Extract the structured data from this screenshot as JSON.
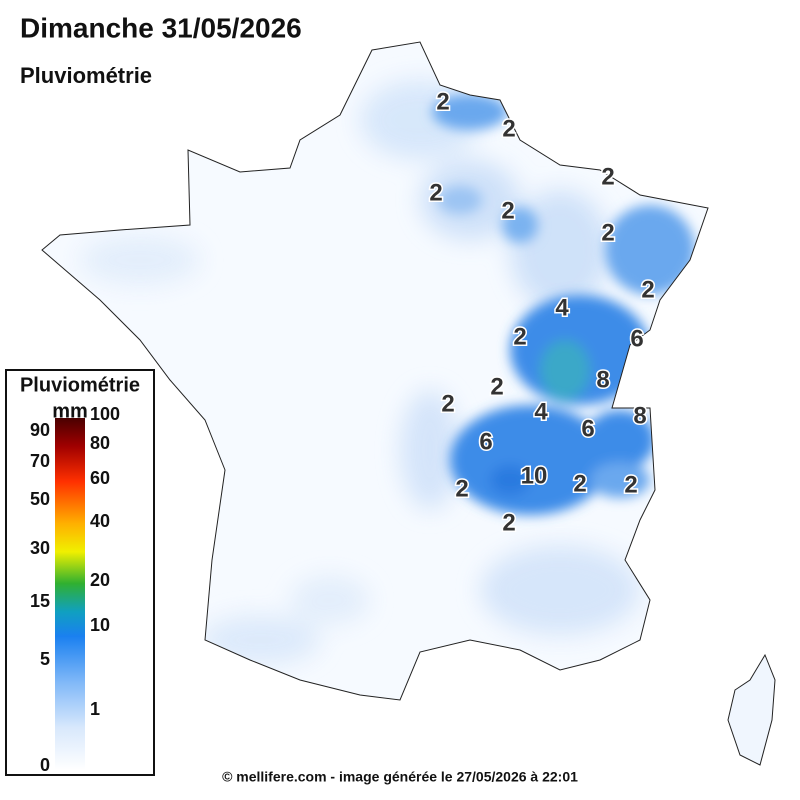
{
  "header": {
    "title": "Dimanche 31/05/2026",
    "subtitle": "Pluviométrie"
  },
  "legend": {
    "title": "Pluviométrie",
    "unit": "mm",
    "left_labels": [
      90,
      70,
      50,
      30,
      15,
      5,
      0
    ],
    "right_labels": [
      100,
      80,
      60,
      40,
      20,
      10,
      1
    ]
  },
  "contour_labels": [
    2,
    2,
    2,
    2,
    2,
    2,
    2,
    4,
    2,
    6,
    8,
    2,
    2,
    4,
    8,
    6,
    6,
    10,
    2,
    2,
    2,
    2
  ],
  "footer": "© mellifere.com - image générée le 27/05/2026 à 22:01"
}
